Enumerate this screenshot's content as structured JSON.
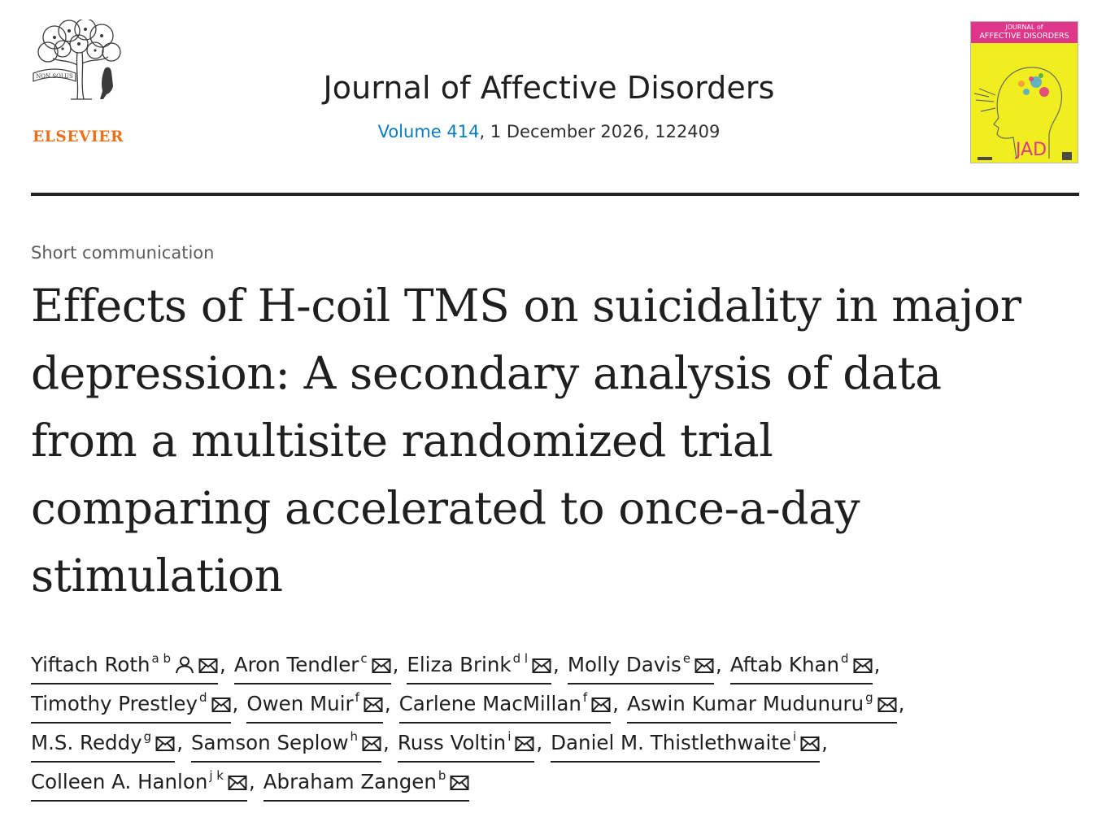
{
  "publisher": {
    "name": "ELSEVIER",
    "banner": "NON SOLUS",
    "logo_icon": "elsevier-tree-icon",
    "brand_color": "#e9711c"
  },
  "journal": {
    "title": "Journal of Affective Disorders",
    "volume_link": "Volume 414",
    "volume_rest": ", 1 December 2026, 122409",
    "link_color": "#0c7dbb"
  },
  "cover": {
    "line1": "JOURNAL of",
    "line2": "AFFECTIVE DISORDERS",
    "monogram": "JAD",
    "bg_color": "#f1ee1f",
    "band_color": "#e0368a"
  },
  "article": {
    "type": "Short communication",
    "title_lines": [
      "Effects of H-coil TMS on suicidality in major",
      "depression: A secondary analysis of data",
      "from a multisite randomized trial",
      "comparing accelerated to once-a-day",
      "stimulation"
    ]
  },
  "author_lines": [
    [
      {
        "name": "Yiftach Roth",
        "sup": "a b",
        "person_icon": true
      },
      {
        "name": "Aron Tendler",
        "sup": "c"
      },
      {
        "name": "Eliza Brink",
        "sup": "d l"
      },
      {
        "name": "Molly Davis",
        "sup": "e"
      },
      {
        "name": "Aftab Khan",
        "sup": "d"
      }
    ],
    [
      {
        "name": "Timothy Prestley",
        "sup": "d"
      },
      {
        "name": "Owen Muir",
        "sup": "f"
      },
      {
        "name": "Carlene MacMillan",
        "sup": "f"
      },
      {
        "name": "Aswin Kumar Mudunuru",
        "sup": "g"
      }
    ],
    [
      {
        "name": "M.S. Reddy",
        "sup": "g"
      },
      {
        "name": "Samson Seplow",
        "sup": "h"
      },
      {
        "name": "Russ Voltin",
        "sup": "i"
      },
      {
        "name": "Daniel M. Thistlethwaite",
        "sup": "i"
      }
    ],
    [
      {
        "name": "Colleen A. Hanlon",
        "sup": "j k"
      },
      {
        "name": "Abraham Zangen",
        "sup": "b"
      }
    ]
  ],
  "icons": {
    "email": "envelope-icon",
    "correspondence": "person-icon"
  }
}
